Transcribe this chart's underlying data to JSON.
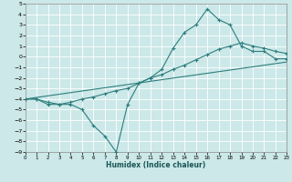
{
  "xlabel": "Humidex (Indice chaleur)",
  "xlim": [
    0,
    23
  ],
  "ylim": [
    -9,
    5
  ],
  "xticks": [
    0,
    1,
    2,
    3,
    4,
    5,
    6,
    7,
    8,
    9,
    10,
    11,
    12,
    13,
    14,
    15,
    16,
    17,
    18,
    19,
    20,
    21,
    22,
    23
  ],
  "yticks": [
    5,
    4,
    3,
    2,
    1,
    0,
    -1,
    -2,
    -3,
    -4,
    -5,
    -6,
    -7,
    -8,
    -9
  ],
  "bg_color": "#cce8e8",
  "grid_color": "#aad4d4",
  "line_color": "#2d7d7d",
  "series_zigzag": {
    "x": [
      0,
      1,
      2,
      3,
      4,
      5,
      6,
      7,
      8,
      9,
      10,
      11,
      12,
      13,
      14,
      15,
      16,
      17,
      18,
      19,
      20,
      21,
      22,
      23
    ],
    "y": [
      -4,
      -4,
      -4.5,
      -4.5,
      -4.5,
      -5.0,
      -6.5,
      -7.5,
      -9.0,
      -4.5,
      -2.5,
      -2.0,
      -1.2,
      0.8,
      2.3,
      3.0,
      4.5,
      3.5,
      3.0,
      1.0,
      0.5,
      0.5,
      -0.2,
      -0.2
    ]
  },
  "series_smooth": {
    "x": [
      0,
      1,
      2,
      3,
      4,
      5,
      6,
      7,
      8,
      9,
      10,
      11,
      12,
      13,
      14,
      15,
      16,
      17,
      18,
      19,
      20,
      21,
      22,
      23
    ],
    "y": [
      -4,
      -4,
      -4.3,
      -4.5,
      -4.3,
      -4.0,
      -3.8,
      -3.5,
      -3.2,
      -3.0,
      -2.5,
      -2.0,
      -1.7,
      -1.2,
      -0.8,
      -0.3,
      0.2,
      0.7,
      1.0,
      1.3,
      1.0,
      0.8,
      0.5,
      0.3
    ]
  },
  "series_line": {
    "x": [
      0,
      23
    ],
    "y": [
      -4,
      -0.5
    ]
  }
}
